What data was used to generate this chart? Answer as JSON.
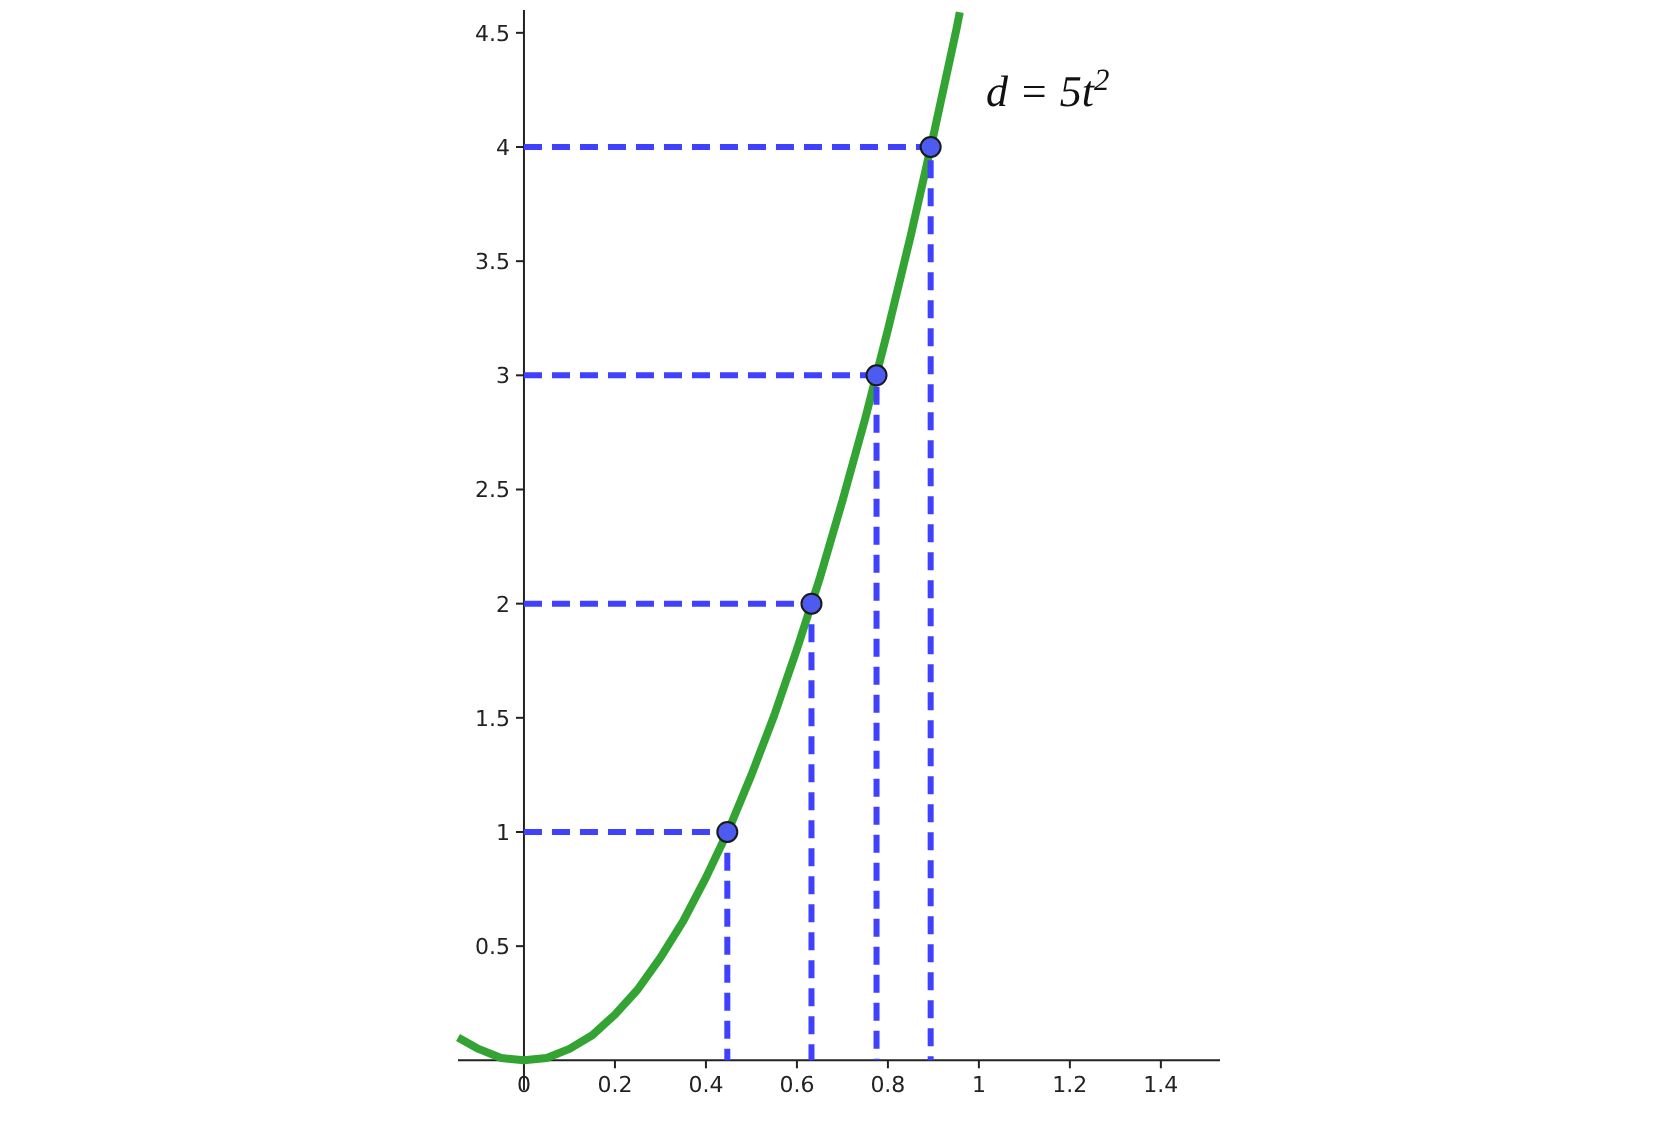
{
  "chart_data": {
    "type": "line",
    "annotations": [
      "d = 5t$^{2}$"
    ],
    "xlim": [
      -0.145,
      1.53
    ],
    "ylim": [
      -0.13,
      4.6
    ],
    "xticks": [
      0,
      0.2,
      0.4,
      0.6,
      0.8,
      1,
      1.2,
      1.4
    ],
    "yticks": [
      0.5,
      1,
      1.5,
      2,
      2.5,
      3,
      3.5,
      4,
      4.5
    ],
    "grid": false,
    "series": [
      {
        "color": "#33a333",
        "marker": "none",
        "line_style": "solid",
        "x": [
          -0.145,
          -0.1,
          -0.05,
          0,
          0.05,
          0.1,
          0.15,
          0.2,
          0.25,
          0.3,
          0.35,
          0.4,
          0.45,
          0.5,
          0.55,
          0.6,
          0.65,
          0.7,
          0.75,
          0.8,
          0.85,
          0.9,
          0.95,
          0.958
        ],
        "values": [
          0.1,
          0.05,
          0.01,
          0,
          0.01,
          0.05,
          0.11,
          0.2,
          0.31,
          0.45,
          0.61,
          0.8,
          1.01,
          1.25,
          1.51,
          1.8,
          2.11,
          2.45,
          2.81,
          3.2,
          3.61,
          4.05,
          4.51,
          4.59
        ]
      },
      {
        "color": "#4040ff",
        "marker": "none",
        "line_style": "dashed",
        "x": [
          0,
          0.447,
          0.447
        ],
        "values": [
          1,
          1,
          0
        ]
      },
      {
        "color": "#4040ff",
        "marker": "none",
        "line_style": "dashed",
        "x": [
          0,
          0.632,
          0.632
        ],
        "values": [
          2,
          2,
          0
        ]
      },
      {
        "color": "#4040ff",
        "marker": "none",
        "line_style": "dashed",
        "x": [
          0,
          0.775,
          0.775
        ],
        "values": [
          3,
          3,
          0
        ]
      },
      {
        "color": "#4040ff",
        "marker": "none",
        "line_style": "dashed",
        "x": [
          0,
          0.894,
          0.894
        ],
        "values": [
          4,
          4,
          0
        ]
      },
      {
        "type": "scatter",
        "color": "#4d5bf0",
        "marker": "circle",
        "x": [
          0.447,
          0.632,
          0.775,
          0.894
        ],
        "values": [
          1,
          2,
          3,
          4
        ]
      }
    ]
  }
}
